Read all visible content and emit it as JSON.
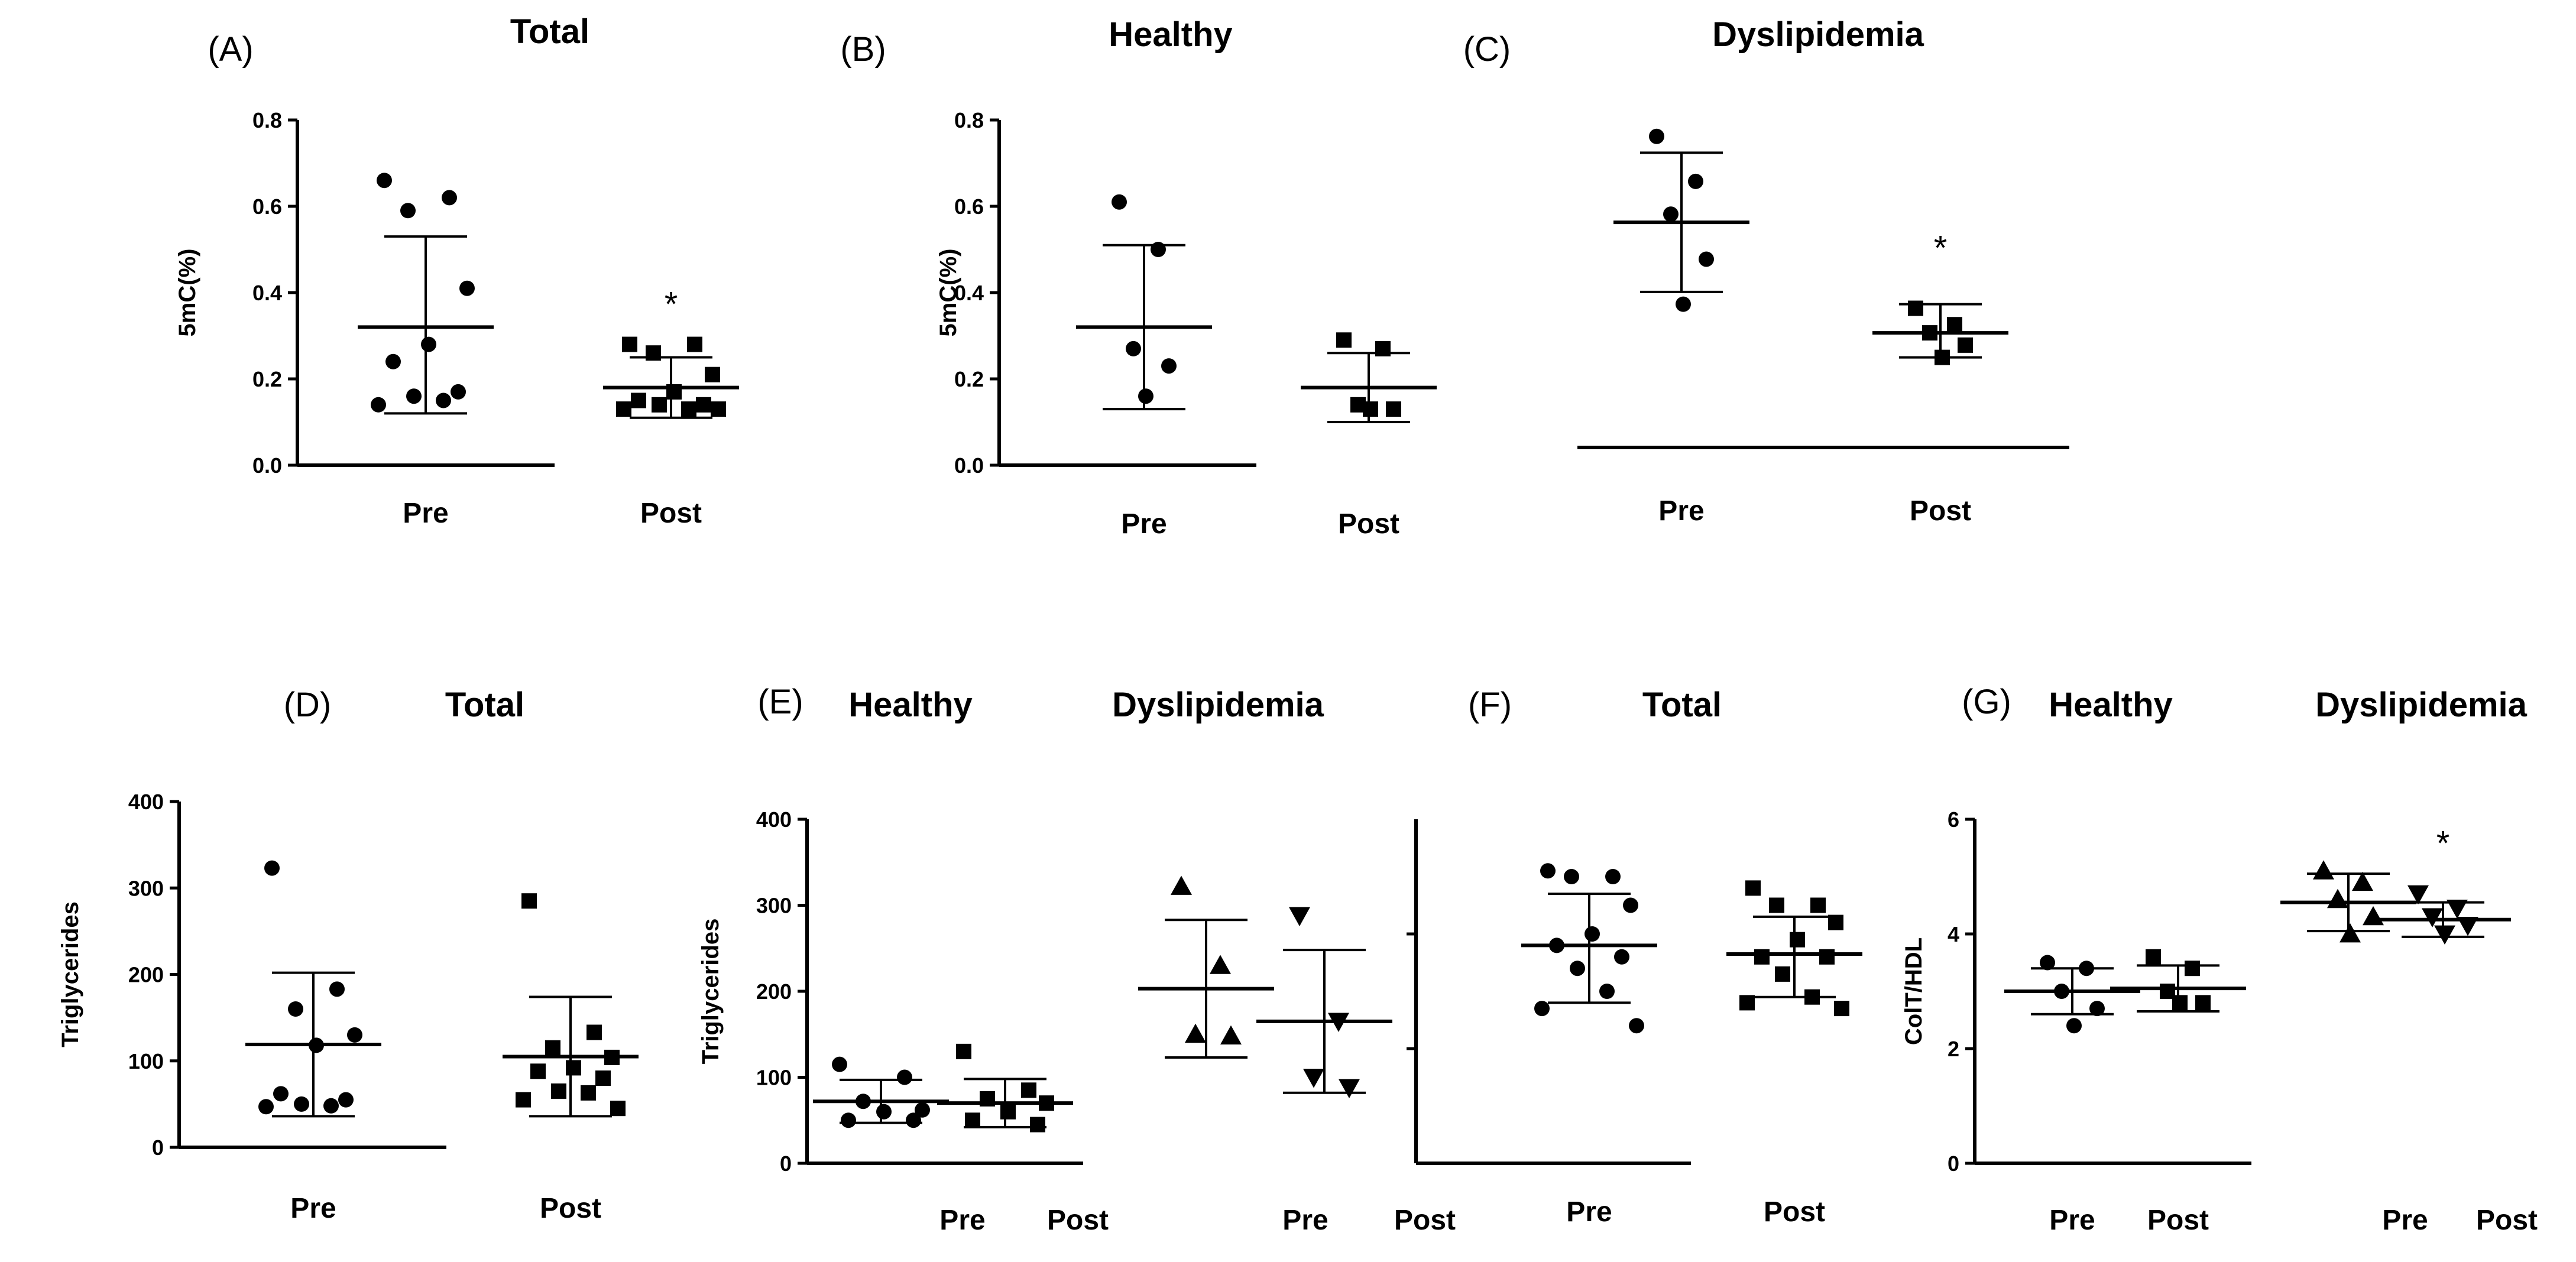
{
  "chart_data": [
    {
      "id": "A",
      "panel_label": "(A)",
      "title": "Total",
      "type": "scatter",
      "ylabel": "5mC(%)",
      "ylim": [
        0,
        0.8
      ],
      "yticks": [
        "0.0",
        "0.2",
        "0.4",
        "0.6",
        "0.8"
      ],
      "groups": [
        {
          "label": "Pre",
          "marker": "circle",
          "values": [
            0.66,
            0.62,
            0.59,
            0.41,
            0.28,
            0.24,
            0.17,
            0.16,
            0.15,
            0.14
          ],
          "mean": 0.32,
          "upper": 0.53,
          "lower": 0.12,
          "significance": ""
        },
        {
          "label": "Post",
          "marker": "square",
          "values": [
            0.28,
            0.28,
            0.26,
            0.21,
            0.17,
            0.15,
            0.14,
            0.14,
            0.13,
            0.13,
            0.13
          ],
          "mean": 0.18,
          "upper": 0.25,
          "lower": 0.11,
          "significance": "*"
        }
      ]
    },
    {
      "id": "B",
      "panel_label": "(B)",
      "title": "Healthy",
      "type": "scatter",
      "ylabel": "5mC(%)",
      "ylim": [
        0,
        0.8
      ],
      "yticks": [
        "0.0",
        "0.2",
        "0.4",
        "0.6",
        "0.8"
      ],
      "groups": [
        {
          "label": "Pre",
          "marker": "circle",
          "values": [
            0.61,
            0.5,
            0.27,
            0.23,
            0.16
          ],
          "mean": 0.32,
          "upper": 0.51,
          "lower": 0.13,
          "significance": ""
        },
        {
          "label": "Post",
          "marker": "square",
          "values": [
            0.29,
            0.27,
            0.14,
            0.13,
            0.13
          ],
          "mean": 0.18,
          "upper": 0.26,
          "lower": 0.1,
          "significance": ""
        }
      ]
    },
    {
      "id": "C",
      "panel_label": "(C)",
      "title": "Dyslipidemia",
      "type": "scatter",
      "ylabel": "",
      "ylim": [
        0,
        0.8
      ],
      "yticks": [],
      "groups": [
        {
          "label": "Pre",
          "marker": "circle",
          "values": [
            0.76,
            0.65,
            0.57,
            0.46,
            0.35
          ],
          "mean": 0.55,
          "upper": 0.72,
          "lower": 0.38,
          "significance": ""
        },
        {
          "label": "Post",
          "marker": "square",
          "values": [
            0.34,
            0.3,
            0.28,
            0.25,
            0.22
          ],
          "mean": 0.28,
          "upper": 0.35,
          "lower": 0.22,
          "significance": "*"
        }
      ]
    },
    {
      "id": "D",
      "panel_label": "(D)",
      "title": "Total",
      "type": "scatter",
      "ylabel": "Triglycerides",
      "ylim": [
        0,
        400
      ],
      "yticks": [
        "0",
        "100",
        "200",
        "300",
        "400"
      ],
      "groups": [
        {
          "label": "Pre",
          "marker": "circle",
          "values": [
            323,
            183,
            160,
            130,
            118,
            62,
            55,
            50,
            48,
            47
          ],
          "mean": 119,
          "upper": 202,
          "lower": 36,
          "significance": ""
        },
        {
          "label": "Post",
          "marker": "square",
          "values": [
            285,
            133,
            115,
            104,
            92,
            88,
            80,
            65,
            63,
            55,
            45
          ],
          "mean": 105,
          "upper": 174,
          "lower": 36,
          "significance": ""
        }
      ]
    },
    {
      "id": "E",
      "panel_label": "(E)",
      "title": "Healthy",
      "title2": "Dyslipidemia",
      "type": "scatter",
      "ylabel": "Triglycerides",
      "ylim": [
        0,
        400
      ],
      "yticks": [
        "0",
        "100",
        "200",
        "300",
        "400"
      ],
      "groups": [
        {
          "label": "Pre",
          "marker": "circle",
          "values": [
            115,
            100,
            72,
            62,
            60,
            50,
            50
          ],
          "mean": 72,
          "upper": 97,
          "lower": 47,
          "significance": ""
        },
        {
          "label": "Post",
          "marker": "square",
          "values": [
            130,
            85,
            75,
            70,
            60,
            50,
            45
          ],
          "mean": 70,
          "upper": 98,
          "lower": 42,
          "significance": ""
        },
        {
          "label": "Pre",
          "marker": "triangle-up",
          "values": [
            322,
            230,
            150,
            148
          ],
          "mean": 203,
          "upper": 283,
          "lower": 123,
          "significance": ""
        },
        {
          "label": "Post",
          "marker": "triangle-down",
          "values": [
            288,
            165,
            100,
            88
          ],
          "mean": 165,
          "upper": 248,
          "lower": 82,
          "significance": ""
        }
      ]
    },
    {
      "id": "F",
      "panel_label": "(F)",
      "title": "Total",
      "type": "scatter",
      "ylabel": "",
      "ylim": [
        0,
        6
      ],
      "yticks": [],
      "groups": [
        {
          "label": "Pre",
          "marker": "circle",
          "values": [
            5.1,
            5.0,
            5.0,
            4.5,
            4.0,
            3.8,
            3.6,
            3.4,
            3.0,
            2.7,
            2.4
          ],
          "mean": 3.8,
          "upper": 4.7,
          "lower": 2.8,
          "significance": ""
        },
        {
          "label": "Post",
          "marker": "square",
          "values": [
            4.8,
            4.5,
            4.5,
            4.2,
            3.9,
            3.6,
            3.6,
            3.3,
            2.9,
            2.8,
            2.7
          ],
          "mean": 3.65,
          "upper": 4.3,
          "lower": 2.9,
          "significance": ""
        }
      ]
    },
    {
      "id": "G",
      "panel_label": "(G)",
      "title": "Healthy",
      "title2": "Dyslipidemia",
      "type": "scatter",
      "ylabel": "ColT/HDL",
      "ylim": [
        0,
        6
      ],
      "yticks": [
        "0",
        "2",
        "4",
        "6"
      ],
      "groups": [
        {
          "label": "Pre",
          "marker": "circle",
          "values": [
            3.5,
            3.4,
            3.0,
            2.7,
            2.4
          ],
          "mean": 3.0,
          "upper": 3.4,
          "lower": 2.6,
          "significance": ""
        },
        {
          "label": "Post",
          "marker": "square",
          "values": [
            3.6,
            3.4,
            3.0,
            2.8,
            2.8
          ],
          "mean": 3.05,
          "upper": 3.45,
          "lower": 2.65,
          "significance": ""
        },
        {
          "label": "Pre",
          "marker": "triangle-up",
          "values": [
            5.1,
            4.9,
            4.6,
            4.3,
            4.0
          ],
          "mean": 4.55,
          "upper": 5.05,
          "lower": 4.05,
          "significance": ""
        },
        {
          "label": "Post",
          "marker": "triangle-down",
          "values": [
            4.7,
            4.45,
            4.3,
            4.15,
            4.0
          ],
          "mean": 4.25,
          "upper": 4.55,
          "lower": 3.95,
          "significance": "*"
        }
      ]
    }
  ]
}
